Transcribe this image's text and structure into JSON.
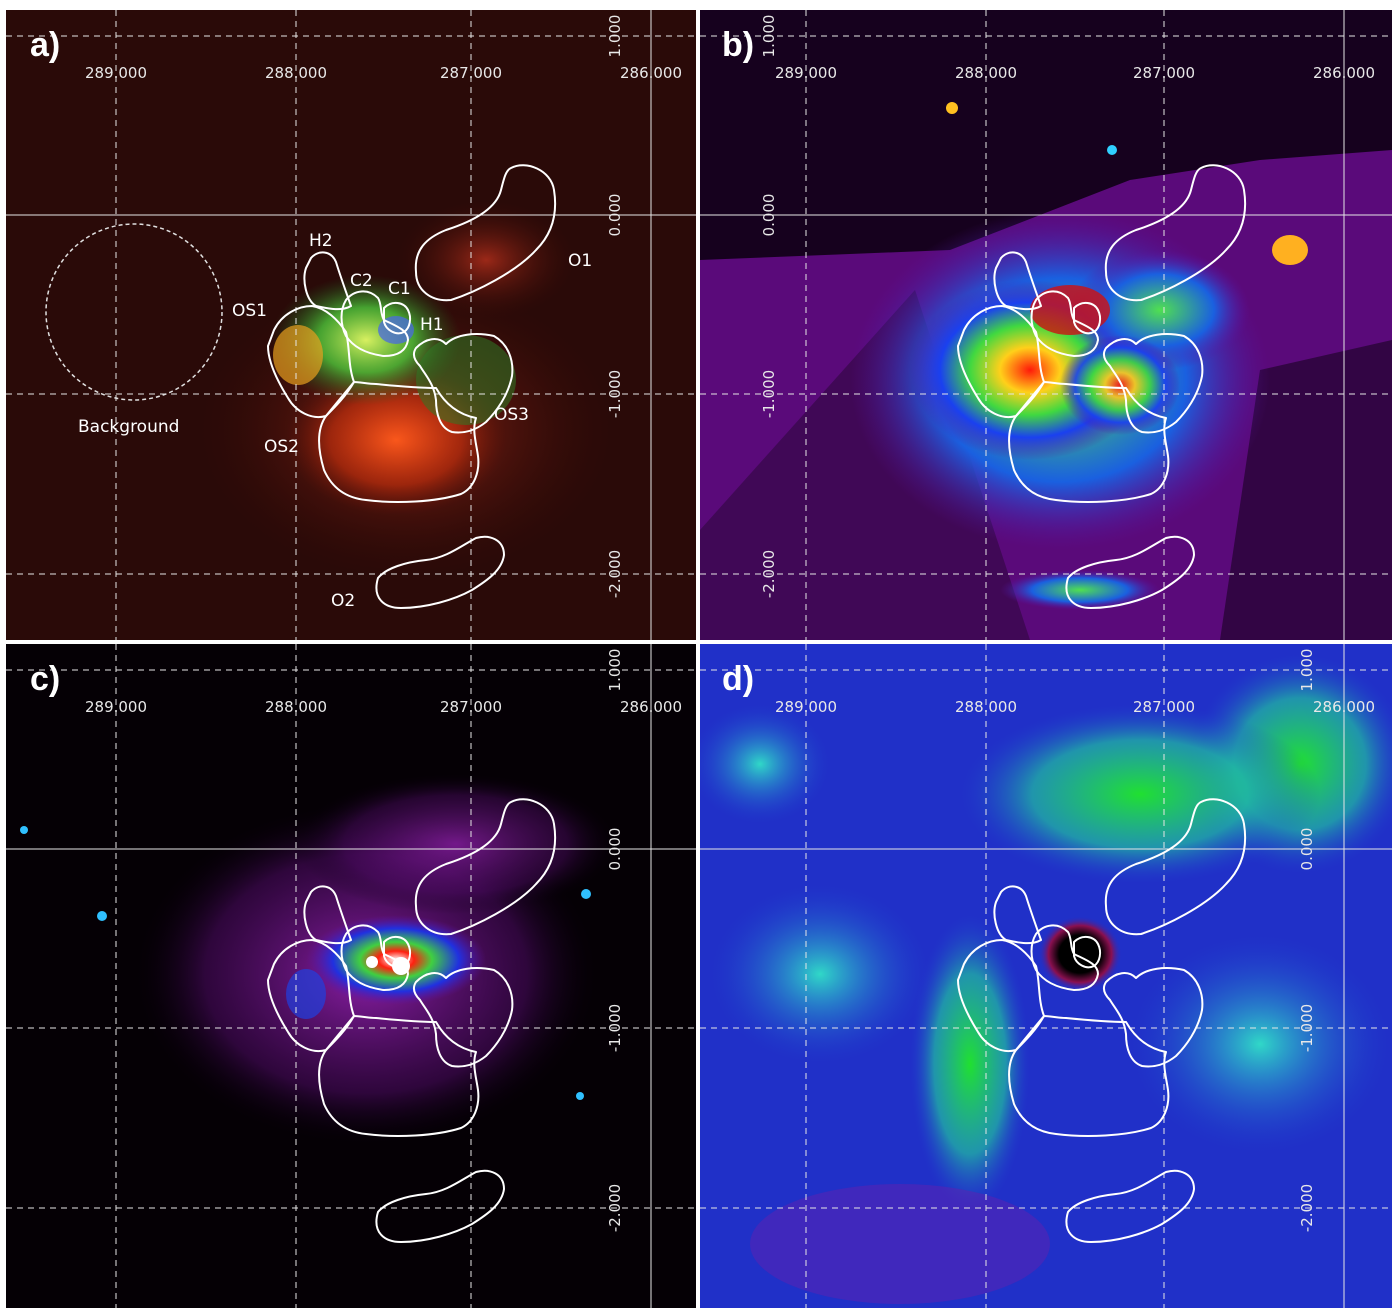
{
  "panels": {
    "a": {
      "label": "a)"
    },
    "b": {
      "label": "b)"
    },
    "c": {
      "label": "c)"
    },
    "d": {
      "label": "d)"
    }
  },
  "ticks": {
    "ra": [
      "289.000",
      "288.000",
      "287.000",
      "286.000"
    ],
    "dec": [
      "1.000",
      "0.000",
      "-1.000",
      "-2.000"
    ]
  },
  "regions": {
    "H2": "H2",
    "C2": "C2",
    "C1": "C1",
    "O1": "O1",
    "OS1": "OS1",
    "H1": "H1",
    "OS3": "OS3",
    "OS2": "OS2",
    "O2": "O2",
    "background": "Background"
  },
  "colors": {
    "panel_a_bg": "#2a0a08",
    "panel_b_bg": "#5a0a7a",
    "panel_c_bg": "#050005",
    "panel_d_bg": "#2030c8"
  }
}
